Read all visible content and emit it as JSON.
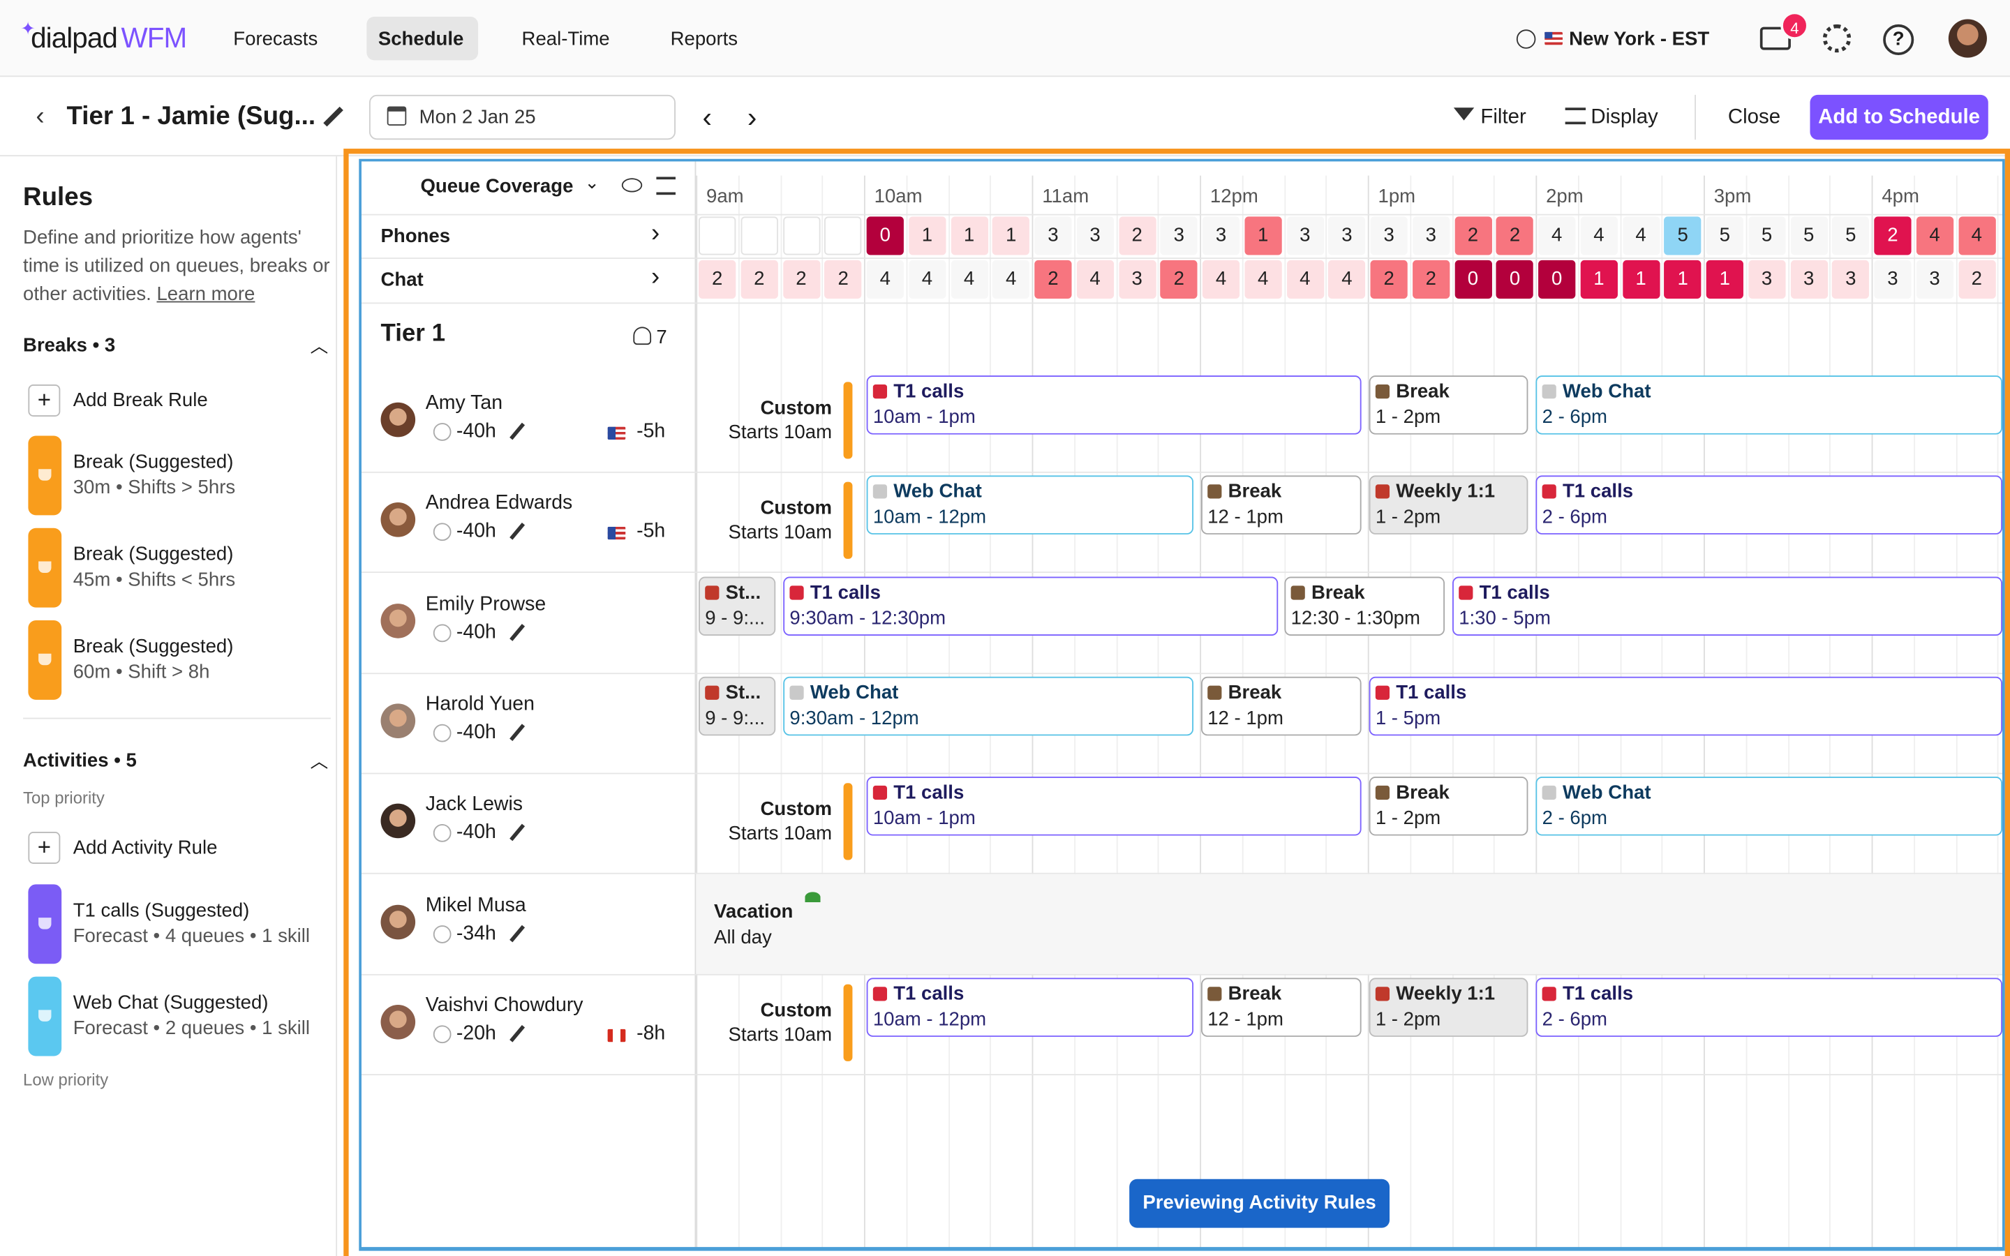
{
  "header": {
    "logo": "dialpad",
    "logo_product": "WFM",
    "nav": [
      "Forecasts",
      "Schedule",
      "Real-Time",
      "Reports"
    ],
    "timezone": "New York - EST",
    "notification_count": 4
  },
  "toolbar": {
    "title": "Tier 1 - Jamie (Sug...",
    "date": "Mon 2 Jan 25",
    "filter": "Filter",
    "display": "Display",
    "close": "Close",
    "primary_action": "Add to Schedule"
  },
  "sidebar": {
    "title": "Rules",
    "description": "Define and prioritize how agents' time is utilized on queues, breaks or other activities.",
    "learn_more": "Learn more",
    "breaks": {
      "heading": "Breaks • 3",
      "add": "Add Break Rule",
      "items": [
        {
          "title": "Break (Suggested)",
          "detail": "30m • Shifts > 5hrs"
        },
        {
          "title": "Break (Suggested)",
          "detail": "45m • Shifts < 5hrs"
        },
        {
          "title": "Break (Suggested)",
          "detail": "60m • Shift > 8h"
        }
      ]
    },
    "activities": {
      "heading": "Activities • 5",
      "top_label": "Top priority",
      "add": "Add Activity Rule",
      "items": [
        {
          "title": "T1 calls (Suggested)",
          "detail": "Forecast • 4 queues • 1 skill"
        },
        {
          "title": "Web Chat (Suggested)",
          "detail": "Forecast • 2 queues • 1 skill"
        }
      ],
      "low_label": "Low priority"
    }
  },
  "schedule": {
    "view": "Queue Coverage",
    "times": [
      "9am",
      "10am",
      "11am",
      "12pm",
      "1pm",
      "2pm",
      "3pm",
      "4pm"
    ],
    "queues": [
      {
        "name": "Phones",
        "values": [
          null,
          null,
          null,
          null,
          0,
          1,
          1,
          1,
          3,
          3,
          2,
          3,
          3,
          1,
          3,
          3,
          3,
          3,
          2,
          2,
          4,
          4,
          4,
          5,
          5,
          5,
          5,
          5,
          2,
          4,
          4
        ],
        "colors": [
          "#ffffff",
          "#ffffff",
          "#ffffff",
          "#ffffff",
          "#b3003c",
          "#fde0e3",
          "#fde0e3",
          "#fde0e3",
          "#f7f7f7",
          "#f7f7f7",
          "#fde0e3",
          "#f7f7f7",
          "#f7f7f7",
          "#f7757f",
          "#f7f7f7",
          "#f7f7f7",
          "#f7f7f7",
          "#f7f7f7",
          "#f7757f",
          "#f7757f",
          "#f7f7f7",
          "#f7f7f7",
          "#f7f7f7",
          "#8fd5f5",
          "#f7f7f7",
          "#f7f7f7",
          "#f7f7f7",
          "#f7f7f7",
          "#e0134f",
          "#f7757f",
          "#f7757f"
        ]
      },
      {
        "name": "Chat",
        "values": [
          2,
          2,
          2,
          2,
          4,
          4,
          4,
          4,
          2,
          4,
          3,
          2,
          4,
          4,
          4,
          4,
          2,
          2,
          0,
          0,
          0,
          1,
          1,
          1,
          1,
          3,
          3,
          3,
          3,
          3,
          2
        ],
        "colors": [
          "#fde0e3",
          "#fde0e3",
          "#fde0e3",
          "#fde0e3",
          "#f7f7f7",
          "#f7f7f7",
          "#f7f7f7",
          "#f7f7f7",
          "#f7757f",
          "#fde0e3",
          "#fde0e3",
          "#f7757f",
          "#fde0e3",
          "#fde0e3",
          "#fde0e3",
          "#fde0e3",
          "#f7757f",
          "#f7757f",
          "#b3003c",
          "#b3003c",
          "#b3003c",
          "#e0134f",
          "#e0134f",
          "#e0134f",
          "#e0134f",
          "#fde0e3",
          "#fde0e3",
          "#fde0e3",
          "#f7f7f7",
          "#f7f7f7",
          "#fde0e3"
        ]
      }
    ],
    "team": {
      "name": "Tier 1",
      "size": 7
    },
    "agents": [
      {
        "name": "Amy Tan",
        "hours": "-40h",
        "utc_offset": "-5h",
        "start": {
          "title": "Custom",
          "detail": "Starts 10am"
        },
        "shifts": [
          {
            "title": "T1 calls",
            "time": "10am - 1pm"
          },
          {
            "title": "Break",
            "time": "1 - 2pm"
          },
          {
            "title": "Web Chat",
            "time": "2 - 6pm"
          }
        ]
      },
      {
        "name": "Andrea Edwards",
        "hours": "-40h",
        "utc_offset": "-5h",
        "start": {
          "title": "Custom",
          "detail": "Starts 10am"
        },
        "shifts": [
          {
            "title": "Web Chat",
            "time": "10am - 12pm"
          },
          {
            "title": "Break",
            "time": "12 - 1pm"
          },
          {
            "title": "Weekly 1:1",
            "time": "1 - 2pm"
          },
          {
            "title": "T1 calls",
            "time": "2 - 6pm"
          }
        ]
      },
      {
        "name": "Emily Prowse",
        "hours": "-40h",
        "shifts": [
          {
            "title": "St...",
            "time": "9 - 9:..."
          },
          {
            "title": "T1 calls",
            "time": "9:30am - 12:30pm"
          },
          {
            "title": "Break",
            "time": "12:30 - 1:30pm"
          },
          {
            "title": "T1 calls",
            "time": "1:30 - 5pm"
          }
        ]
      },
      {
        "name": "Harold Yuen",
        "hours": "-40h",
        "shifts": [
          {
            "title": "St...",
            "time": "9 - 9:..."
          },
          {
            "title": "Web Chat",
            "time": "9:30am - 12pm"
          },
          {
            "title": "Break",
            "time": "12 - 1pm"
          },
          {
            "title": "T1 calls",
            "time": "1 - 5pm"
          }
        ]
      },
      {
        "name": "Jack Lewis",
        "hours": "-40h",
        "start": {
          "title": "Custom",
          "detail": "Starts 10am"
        },
        "shifts": [
          {
            "title": "T1 calls",
            "time": "10am - 1pm"
          },
          {
            "title": "Break",
            "time": "1 - 2pm"
          },
          {
            "title": "Web Chat",
            "time": "2 - 6pm"
          }
        ]
      },
      {
        "name": "Mikel Musa",
        "hours": "-34h",
        "time_off": {
          "title": "Vacation",
          "detail": "All day"
        },
        "shifts": []
      },
      {
        "name": "Vaishvi Chowdury",
        "hours": "-20h",
        "utc_offset": "-8h",
        "start": {
          "title": "Custom",
          "detail": "Starts 10am"
        },
        "shifts": [
          {
            "title": "T1 calls",
            "time": "10am - 12pm"
          },
          {
            "title": "Break",
            "time": "12 - 1pm"
          },
          {
            "title": "Weekly 1:1",
            "time": "1 - 2pm"
          },
          {
            "title": "T1 calls",
            "time": "2 - 6pm"
          }
        ]
      }
    ],
    "status": "Previewing Activity Rules"
  }
}
